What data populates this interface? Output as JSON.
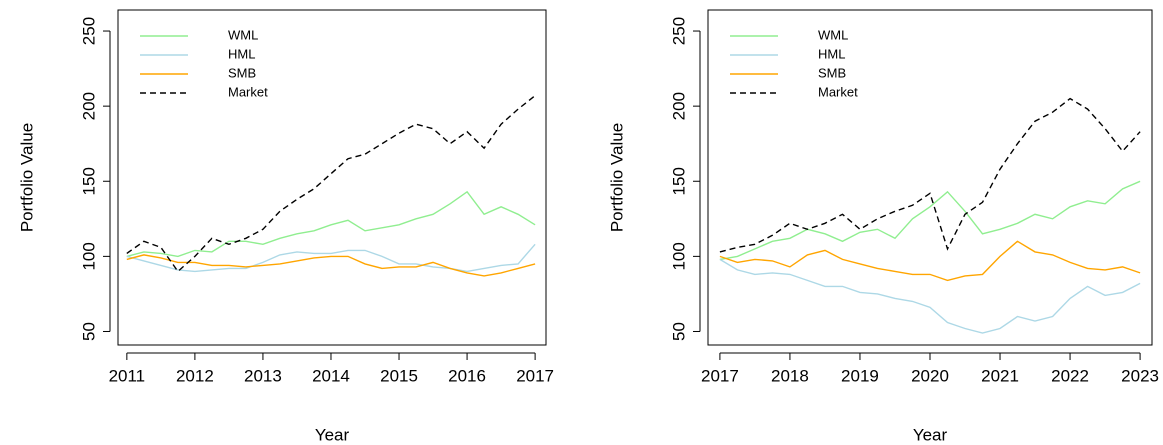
{
  "chart_data": [
    {
      "type": "line",
      "x_label": "Year",
      "y_label": "Portfolio Value",
      "x": [
        2011.0,
        2011.25,
        2011.5,
        2011.75,
        2012.0,
        2012.25,
        2012.5,
        2012.75,
        2013.0,
        2013.25,
        2013.5,
        2013.75,
        2014.0,
        2014.25,
        2014.5,
        2014.75,
        2015.0,
        2015.25,
        2015.5,
        2015.75,
        2016.0,
        2016.25,
        2016.5,
        2016.75,
        2017.0
      ],
      "xlim": [
        2010.87,
        2017.16
      ],
      "xticks": [
        2011,
        2012,
        2013,
        2014,
        2015,
        2016,
        2017
      ],
      "ylim": [
        41,
        264
      ],
      "yticks": [
        50,
        100,
        150,
        200,
        250
      ],
      "legend": "top-left",
      "series": [
        {
          "name": "WML",
          "color": "#90ee90",
          "dash": false,
          "values": [
            100,
            103,
            102,
            100,
            104,
            103,
            110,
            110,
            108,
            112,
            115,
            117,
            121,
            124,
            117,
            119,
            121,
            125,
            128,
            135,
            143,
            128,
            133,
            128,
            121
          ]
        },
        {
          "name": "HML",
          "color": "#add8e6",
          "dash": false,
          "values": [
            100,
            97,
            94,
            91,
            90,
            91,
            92,
            92,
            96,
            101,
            103,
            102,
            102,
            104,
            104,
            100,
            95,
            95,
            93,
            92,
            90,
            92,
            94,
            95,
            108
          ]
        },
        {
          "name": "SMB",
          "color": "#ffa500",
          "dash": false,
          "values": [
            98,
            101,
            99,
            96,
            96,
            94,
            94,
            93,
            94,
            95,
            97,
            99,
            100,
            100,
            95,
            92,
            93,
            93,
            96,
            92,
            89,
            87,
            89,
            92,
            95
          ]
        },
        {
          "name": "Market",
          "color": "#000000",
          "dash": true,
          "values": [
            102,
            110,
            106,
            90,
            100,
            112,
            108,
            112,
            118,
            130,
            138,
            145,
            155,
            165,
            168,
            175,
            182,
            188,
            185,
            175,
            183,
            172,
            188,
            198,
            207
          ]
        }
      ]
    },
    {
      "type": "line",
      "x_label": "Year",
      "y_label": "Portfolio Value",
      "x": [
        2017.0,
        2017.25,
        2017.5,
        2017.75,
        2018.0,
        2018.25,
        2018.5,
        2018.75,
        2019.0,
        2019.25,
        2019.5,
        2019.75,
        2020.0,
        2020.25,
        2020.5,
        2020.75,
        2021.0,
        2021.25,
        2021.5,
        2021.75,
        2022.0,
        2022.25,
        2022.5,
        2022.75,
        2023.0
      ],
      "xlim": [
        2016.83,
        2023.17
      ],
      "xticks": [
        2017,
        2018,
        2019,
        2020,
        2021,
        2022,
        2023
      ],
      "ylim": [
        41,
        264
      ],
      "yticks": [
        50,
        100,
        150,
        200,
        250
      ],
      "legend": "top-left",
      "series": [
        {
          "name": "WML",
          "color": "#90ee90",
          "dash": false,
          "values": [
            98,
            100,
            105,
            110,
            112,
            118,
            115,
            110,
            116,
            118,
            112,
            125,
            133,
            143,
            130,
            115,
            118,
            122,
            128,
            125,
            133,
            137,
            135,
            145,
            150
          ]
        },
        {
          "name": "HML",
          "color": "#add8e6",
          "dash": false,
          "values": [
            98,
            91,
            88,
            89,
            88,
            84,
            80,
            80,
            76,
            75,
            72,
            70,
            66,
            56,
            52,
            49,
            52,
            60,
            57,
            60,
            72,
            80,
            74,
            76,
            82
          ]
        },
        {
          "name": "SMB",
          "color": "#ffa500",
          "dash": false,
          "values": [
            100,
            96,
            98,
            97,
            93,
            101,
            104,
            98,
            95,
            92,
            90,
            88,
            88,
            84,
            87,
            88,
            100,
            110,
            103,
            101,
            96,
            92,
            91,
            93,
            89
          ]
        },
        {
          "name": "Market",
          "color": "#000000",
          "dash": true,
          "values": [
            103,
            106,
            108,
            114,
            122,
            118,
            122,
            128,
            118,
            125,
            130,
            134,
            142,
            105,
            128,
            136,
            158,
            175,
            190,
            196,
            205,
            198,
            185,
            170,
            183
          ]
        }
      ]
    }
  ]
}
